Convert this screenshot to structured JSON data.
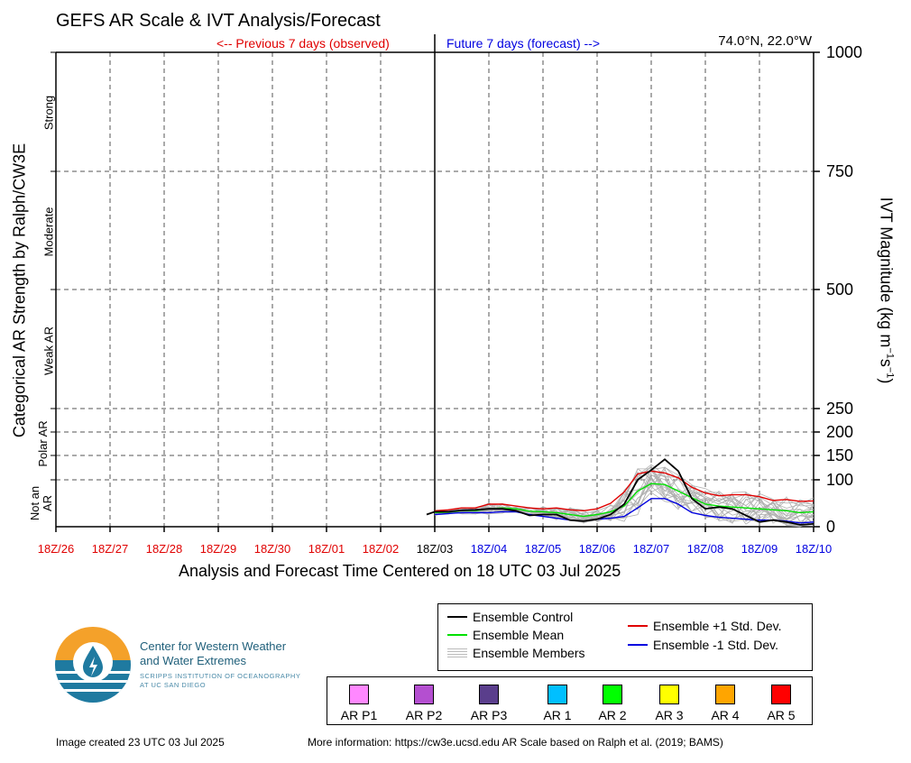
{
  "title": "GEFS AR Scale & IVT Analysis/Forecast",
  "location": "74.0°N, 22.0°W",
  "previous_label": "<-- Previous 7 days (observed)",
  "future_label": "Future 7 days (forecast) -->",
  "xlabel": "Analysis and Forecast Time Centered on 18 UTC 03 Jul 2025",
  "left_axis_label": "Categorical AR Strength by Ralph/CW3E",
  "right_axis_label": "IVT Magnitude (kg m",
  "right_axis_sup1": "−1",
  "right_axis_mid": "s",
  "right_axis_sup2": "−1",
  "right_axis_end": ")",
  "categories_left": [
    "Strong",
    "Moderate",
    "Weak AR",
    "Polar AR",
    "Not an AR"
  ],
  "created": "Image created 23 UTC 03 Jul 2025",
  "more_info": "More information: https://cw3e.ucsd.edu AR Scale based on Ralph et al. (2019; BAMS)",
  "org": {
    "name_line1": "Center for Western Weather",
    "name_line2": "and Water Extremes",
    "sub_line1": "SCRIPPS INSTITUTION OF OCEANOGRAPHY",
    "sub_line2": "AT UC SAN DIEGO"
  },
  "legend": {
    "control": "Ensemble Control",
    "mean": "Ensemble Mean",
    "members": "Ensemble Members",
    "plus": "Ensemble +1 Std. Dev.",
    "minus": "Ensemble -1 Std. Dev."
  },
  "ar_categories": [
    {
      "label": "AR P1",
      "color": "#ff88ff"
    },
    {
      "label": "AR P2",
      "color": "#b44fd0"
    },
    {
      "label": "AR P3",
      "color": "#5a3e8c"
    },
    {
      "label": "AR 1",
      "color": "#00bfff"
    },
    {
      "label": "AR 2",
      "color": "#00ff00"
    },
    {
      "label": "AR 3",
      "color": "#ffff00"
    },
    {
      "label": "AR 4",
      "color": "#ffa500"
    },
    {
      "label": "AR 5",
      "color": "#ff0000"
    }
  ],
  "colors": {
    "control": "#000000",
    "mean": "#00e000",
    "members": "#b0b0b0",
    "plus": "#e00000",
    "minus": "#0000e0",
    "observed_ticks": "#e00000",
    "forecast_ticks": "#0000e0",
    "logo_orange": "#f4a12a",
    "logo_teal": "#1f7aa0"
  },
  "chart_data": {
    "type": "line",
    "x_ticks": [
      "18Z/26",
      "18Z/27",
      "18Z/28",
      "18Z/29",
      "18Z/30",
      "18Z/01",
      "18Z/02",
      "18Z/03",
      "18Z/04",
      "18Z/05",
      "18Z/06",
      "18Z/07",
      "18Z/08",
      "18Z/09",
      "18Z/10"
    ],
    "x_tick_days": [
      -7,
      -6,
      -5,
      -4,
      -3,
      -2,
      -1,
      0,
      1,
      2,
      3,
      4,
      5,
      6,
      7
    ],
    "xlim": [
      -7,
      7
    ],
    "y_ticks": [
      0,
      100,
      150,
      200,
      250,
      500,
      750,
      1000
    ],
    "ylim": [
      0,
      1000
    ],
    "gridlines_y": [
      100,
      150,
      200,
      250,
      500,
      750
    ],
    "grid": true,
    "series": [
      {
        "name": "Ensemble Control",
        "color": "#000000",
        "x": [
          -0.15,
          0,
          0.25,
          0.5,
          0.75,
          1,
          1.25,
          1.5,
          1.75,
          2,
          2.25,
          2.5,
          2.75,
          3,
          3.25,
          3.5,
          3.75,
          4,
          4.25,
          4.5,
          4.75,
          5,
          5.25,
          5.5,
          5.75,
          6,
          6.25,
          6.5,
          6.75,
          7
        ],
        "y": [
          26,
          32,
          32,
          35,
          36,
          38,
          38,
          34,
          24,
          26,
          26,
          14,
          12,
          16,
          26,
          48,
          100,
          120,
          142,
          118,
          60,
          38,
          42,
          38,
          24,
          10,
          14,
          10,
          4,
          6
        ]
      },
      {
        "name": "Ensemble Mean",
        "color": "#00e000",
        "x": [
          0,
          0.25,
          0.5,
          0.75,
          1,
          1.25,
          1.5,
          1.75,
          2,
          2.25,
          2.5,
          2.75,
          3,
          3.25,
          3.5,
          3.75,
          4,
          4.25,
          4.5,
          4.75,
          5,
          5.25,
          5.5,
          5.75,
          6,
          6.25,
          6.5,
          6.75,
          7
        ],
        "y": [
          30,
          31,
          34,
          34,
          38,
          40,
          38,
          33,
          32,
          30,
          26,
          22,
          26,
          32,
          44,
          76,
          92,
          90,
          76,
          62,
          48,
          44,
          42,
          40,
          38,
          36,
          34,
          30,
          32
        ]
      },
      {
        "name": "Ensemble +1 Std. Dev.",
        "color": "#e00000",
        "x": [
          0,
          0.25,
          0.5,
          0.75,
          1,
          1.25,
          1.5,
          1.75,
          2,
          2.25,
          2.5,
          2.75,
          3,
          3.25,
          3.5,
          3.75,
          4,
          4.25,
          4.5,
          4.75,
          5,
          5.25,
          5.5,
          5.75,
          6,
          6.25,
          6.5,
          6.75,
          7
        ],
        "y": [
          34,
          36,
          40,
          40,
          48,
          48,
          44,
          40,
          38,
          40,
          36,
          34,
          38,
          50,
          74,
          112,
          118,
          114,
          104,
          84,
          72,
          66,
          68,
          68,
          64,
          56,
          58,
          54,
          55
        ]
      },
      {
        "name": "Ensemble -1 Std. Dev.",
        "color": "#0000e0",
        "x": [
          0,
          0.25,
          0.5,
          0.75,
          1,
          1.25,
          1.5,
          1.75,
          2,
          2.25,
          2.5,
          2.75,
          3,
          3.25,
          3.5,
          3.75,
          4,
          4.25,
          4.5,
          4.75,
          5,
          5.25,
          5.5,
          5.75,
          6,
          6.25,
          6.5,
          6.75,
          7
        ],
        "y": [
          26,
          28,
          30,
          30,
          30,
          32,
          32,
          26,
          22,
          18,
          14,
          12,
          16,
          18,
          22,
          40,
          60,
          60,
          48,
          30,
          24,
          20,
          18,
          16,
          14,
          14,
          12,
          8,
          10
        ]
      }
    ]
  }
}
